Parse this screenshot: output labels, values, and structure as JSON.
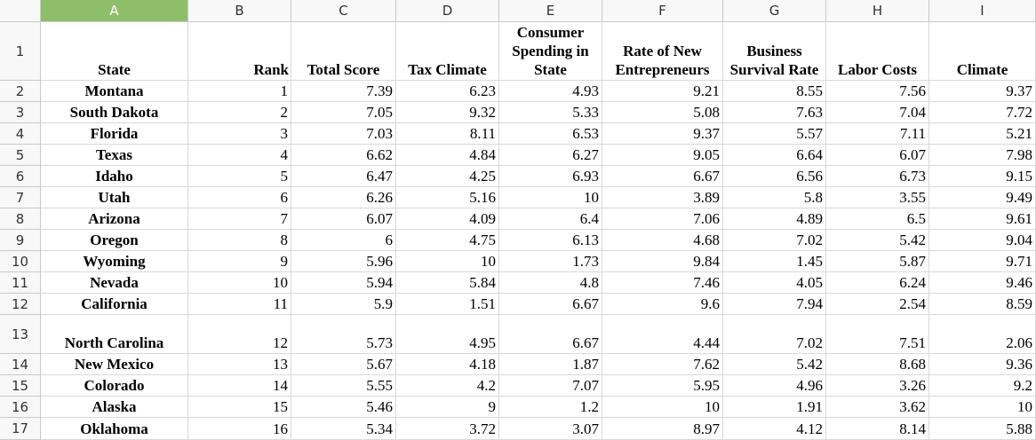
{
  "columns": [
    "A",
    "B",
    "C",
    "D",
    "E",
    "F",
    "G",
    "H",
    "I"
  ],
  "selected_column": "A",
  "row_numbers": [
    "1",
    "2",
    "3",
    "4",
    "5",
    "6",
    "7",
    "8",
    "9",
    "10",
    "11",
    "12",
    "13",
    "14",
    "15",
    "16",
    "17"
  ],
  "headers": {
    "state": "State",
    "rank": "Rank",
    "total_score": "Total Score",
    "tax_climate": "Tax Climate",
    "consumer_spending": "Consumer Spending in State",
    "rate_new_entrepreneurs": "Rate of New Entrepreneurs",
    "business_survival": "Business Survival Rate",
    "labor_costs": "Labor Costs",
    "climate": "Climate"
  },
  "rows": [
    [
      "Montana",
      "1",
      "7.39",
      "6.23",
      "4.93",
      "9.21",
      "8.55",
      "7.56",
      "9.37"
    ],
    [
      "South Dakota",
      "2",
      "7.05",
      "9.32",
      "5.33",
      "5.08",
      "7.63",
      "7.04",
      "7.72"
    ],
    [
      "Florida",
      "3",
      "7.03",
      "8.11",
      "6.53",
      "9.37",
      "5.57",
      "7.11",
      "5.21"
    ],
    [
      "Texas",
      "4",
      "6.62",
      "4.84",
      "6.27",
      "9.05",
      "6.64",
      "6.07",
      "7.98"
    ],
    [
      "Idaho",
      "5",
      "6.47",
      "4.25",
      "6.93",
      "6.67",
      "6.56",
      "6.73",
      "9.15"
    ],
    [
      "Utah",
      "6",
      "6.26",
      "5.16",
      "10",
      "3.89",
      "5.8",
      "3.55",
      "9.49"
    ],
    [
      "Arizona",
      "7",
      "6.07",
      "4.09",
      "6.4",
      "7.06",
      "4.89",
      "6.5",
      "9.61"
    ],
    [
      "Oregon",
      "8",
      "6",
      "4.75",
      "6.13",
      "4.68",
      "7.02",
      "5.42",
      "9.04"
    ],
    [
      "Wyoming",
      "9",
      "5.96",
      "10",
      "1.73",
      "9.84",
      "1.45",
      "5.87",
      "9.71"
    ],
    [
      "Nevada",
      "10",
      "5.94",
      "5.84",
      "4.8",
      "7.46",
      "4.05",
      "6.24",
      "9.46"
    ],
    [
      "California",
      "11",
      "5.9",
      "1.51",
      "6.67",
      "9.6",
      "7.94",
      "2.54",
      "8.59"
    ],
    [
      "North Carolina",
      "12",
      "5.73",
      "4.95",
      "6.67",
      "4.44",
      "7.02",
      "7.51",
      "2.06"
    ],
    [
      "New Mexico",
      "13",
      "5.67",
      "4.18",
      "1.87",
      "7.62",
      "5.42",
      "8.68",
      "9.36"
    ],
    [
      "Colorado",
      "14",
      "5.55",
      "4.2",
      "7.07",
      "5.95",
      "4.96",
      "3.26",
      "9.2"
    ],
    [
      "Alaska",
      "15",
      "5.46",
      "9",
      "1.2",
      "10",
      "1.91",
      "3.62",
      "10"
    ],
    [
      "Oklahoma",
      "16",
      "5.34",
      "3.72",
      "3.07",
      "8.97",
      "4.12",
      "8.14",
      "5.88"
    ]
  ]
}
